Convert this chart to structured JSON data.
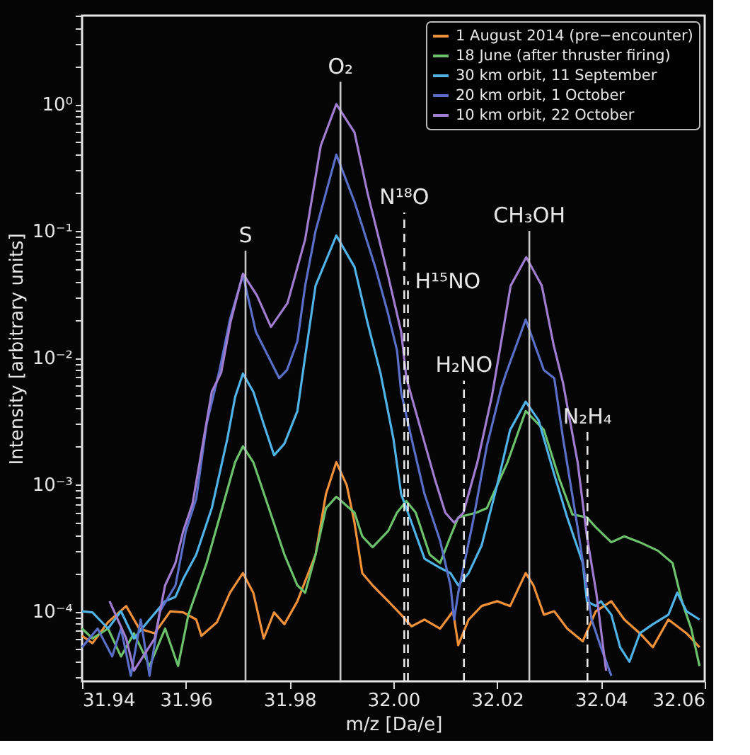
{
  "chart_data": {
    "type": "line",
    "xlabel": "m/z [Da/e]",
    "ylabel": "Intensity [arbitrary units]",
    "log": "y",
    "legend": "top right",
    "grid": false,
    "xlim": [
      31.94,
      32.06
    ],
    "xticks": [
      31.94,
      31.96,
      31.98,
      {
        "value": 32,
        "label": "32.00"
      },
      32.02,
      32.04,
      32.06
    ],
    "ylim": [
      2.8e-05,
      5
    ],
    "yticks": [
      {
        "value": 3e-05,
        "label": null
      },
      {
        "value": 4e-05,
        "label": null
      },
      {
        "value": 5e-05,
        "label": null
      },
      {
        "value": 6e-05,
        "label": null
      },
      {
        "value": 7e-05,
        "label": null
      },
      {
        "value": 8e-05,
        "label": null
      },
      {
        "value": 9e-05,
        "label": null
      },
      {
        "value": 0.0001,
        "label": "10⁻⁴"
      },
      {
        "value": 0.0002,
        "label": null
      },
      {
        "value": 0.0003,
        "label": null
      },
      {
        "value": 0.0004,
        "label": null
      },
      {
        "value": 0.0005,
        "label": null
      },
      {
        "value": 0.0006,
        "label": null
      },
      {
        "value": 0.0007,
        "label": null
      },
      {
        "value": 0.0008,
        "label": null
      },
      {
        "value": 0.0009,
        "label": null
      },
      {
        "value": 0.001,
        "label": "10⁻³"
      },
      {
        "value": 0.002,
        "label": null
      },
      {
        "value": 0.003,
        "label": null
      },
      {
        "value": 0.004,
        "label": null
      },
      {
        "value": 0.005,
        "label": null
      },
      {
        "value": 0.006,
        "label": null
      },
      {
        "value": 0.007,
        "label": null
      },
      {
        "value": 0.008,
        "label": null
      },
      {
        "value": 0.009,
        "label": null
      },
      {
        "value": 0.01,
        "label": "10⁻²"
      },
      {
        "value": 0.02,
        "label": null
      },
      {
        "value": 0.03,
        "label": null
      },
      {
        "value": 0.04,
        "label": null
      },
      {
        "value": 0.05,
        "label": null
      },
      {
        "value": 0.06,
        "label": null
      },
      {
        "value": 0.07,
        "label": null
      },
      {
        "value": 0.08,
        "label": null
      },
      {
        "value": 0.09,
        "label": null
      },
      {
        "value": 0.1,
        "label": "10⁻¹"
      },
      {
        "value": 0.2,
        "label": null
      },
      {
        "value": 0.3,
        "label": null
      },
      {
        "value": 0.4,
        "label": null
      },
      {
        "value": 0.5,
        "label": null
      },
      {
        "value": 0.6,
        "label": null
      },
      {
        "value": 0.7,
        "label": null
      },
      {
        "value": 0.8,
        "label": null
      },
      {
        "value": 0.9,
        "label": null
      },
      {
        "value": 1,
        "label": "10⁰"
      },
      {
        "value": 2,
        "label": null
      },
      {
        "value": 3,
        "label": null
      },
      {
        "value": 4,
        "label": null
      },
      {
        "value": 5,
        "label": null
      }
    ],
    "series": [
      {
        "name": "1 August 2014 (pre−encounter)",
        "color": "#f0913a",
        "x": [
          31.94,
          31.942,
          31.945,
          31.9485,
          31.951,
          31.954,
          31.957,
          31.9595,
          31.962,
          31.963,
          31.966,
          31.9685,
          31.971,
          31.973,
          31.975,
          31.977,
          31.979,
          31.9815,
          31.985,
          31.987,
          31.989,
          31.991,
          31.9925,
          31.994,
          31.996,
          31.999,
          32.0015,
          32.0035,
          32.006,
          32.009,
          32.0115,
          32.0125,
          32.0145,
          32.017,
          32.02,
          32.0225,
          32.0255,
          32.027,
          32.029,
          32.031,
          32.0335,
          32.0365,
          32.039,
          32.042,
          32.0445,
          32.0475,
          32.05,
          32.053,
          32.0565,
          32.059
        ],
        "values": [
          6.4e-05,
          5.6e-05,
          8.2e-05,
          0.00011,
          7.3e-05,
          6.7e-05,
          0.0001,
          9.8e-05,
          8.6e-05,
          6.4e-05,
          8.2e-05,
          0.00014,
          0.0002,
          0.00014,
          6.1e-05,
          9.8e-05,
          7.9e-05,
          0.00012,
          0.00028,
          0.00084,
          0.0015,
          0.00099,
          0.0005,
          0.0002,
          0.00016,
          0.00012,
          9.4e-05,
          7.6e-05,
          8.6e-05,
          7.3e-05,
          0.0001,
          5.4e-05,
          8.6e-05,
          0.00011,
          0.00012,
          0.00011,
          0.0002,
          0.00016,
          9.4e-05,
          0.0001,
          7.3e-05,
          5.8e-05,
          0.0001,
          0.00012,
          8.6e-05,
          6.7e-05,
          5.2e-05,
          8.6e-05,
          6.7e-05,
          5.2e-05
        ]
      },
      {
        "name": "18 June (after thruster firing)",
        "color": "#6cc26b",
        "x": [
          31.94,
          31.942,
          31.945,
          31.9475,
          31.95,
          31.953,
          31.956,
          31.9585,
          31.9605,
          31.964,
          31.967,
          31.9695,
          31.971,
          31.973,
          31.976,
          31.979,
          31.9815,
          31.983,
          31.985,
          31.987,
          31.989,
          31.9925,
          31.994,
          31.996,
          31.999,
          32.0007,
          32.0025,
          32.0043,
          32.007,
          32.009,
          32.011,
          32.0125,
          32.016,
          32.018,
          32.022,
          32.0255,
          32.029,
          32.032,
          32.0345,
          32.0373,
          32.039,
          32.042,
          32.0445,
          32.0475,
          32.051,
          32.0538,
          32.0556,
          32.0574,
          32.059
        ],
        "values": [
          7.3e-05,
          6.1e-05,
          7.3e-05,
          4.4e-05,
          6.7e-05,
          3.7e-05,
          7.3e-05,
          3.7e-05,
          9.4e-05,
          0.00024,
          0.00065,
          0.0015,
          0.002,
          0.0015,
          0.00065,
          0.00028,
          0.00016,
          0.00014,
          0.00028,
          0.00065,
          0.0008,
          0.0006,
          0.00039,
          0.00032,
          0.00043,
          0.0006,
          0.00074,
          0.0006,
          0.00028,
          0.00024,
          0.00039,
          0.00055,
          0.0006,
          0.00065,
          0.0015,
          0.0038,
          0.0027,
          0.0011,
          0.00058,
          0.00055,
          0.00046,
          0.00035,
          0.00039,
          0.00035,
          0.0003,
          0.00024,
          0.00012,
          7.3e-05,
          3.7e-05
        ]
      },
      {
        "name": "30 km orbit, 11 September",
        "color": "#4fb3e8",
        "x": [
          31.94,
          31.942,
          31.945,
          31.9475,
          31.95,
          31.953,
          31.956,
          31.958,
          31.9595,
          31.962,
          31.965,
          31.968,
          31.9695,
          31.971,
          31.973,
          31.975,
          31.977,
          31.979,
          31.9815,
          31.9828,
          31.985,
          31.989,
          31.9925,
          31.995,
          31.9975,
          32.0,
          32.0015,
          32.0035,
          32.006,
          32.009,
          32.011,
          32.0125,
          32.0145,
          32.017,
          32.02,
          32.0225,
          32.0255,
          32.028,
          32.031,
          32.0335,
          32.0365,
          32.0373,
          32.039,
          32.04,
          32.042,
          32.0437,
          32.0455,
          32.0475,
          32.05,
          32.053,
          32.0547,
          32.0565,
          32.059
        ],
        "values": [
          0.0001,
          9.8e-05,
          7.3e-05,
          0.0001,
          6.1e-05,
          8.6e-05,
          0.00012,
          0.00013,
          0.00018,
          0.00028,
          0.00065,
          0.0023,
          0.0049,
          0.0075,
          0.0054,
          0.003,
          0.0017,
          0.0021,
          0.0038,
          0.009,
          0.037,
          0.092,
          0.052,
          0.019,
          0.0076,
          0.0023,
          0.00084,
          0.0005,
          0.00026,
          0.00022,
          0.0002,
          0.00016,
          0.0002,
          0.00033,
          0.00099,
          0.0027,
          0.0045,
          0.0032,
          0.0012,
          0.00055,
          0.00024,
          0.00012,
          0.00011,
          0.00012,
          9.4e-05,
          5.2e-05,
          4e-05,
          6.7e-05,
          7.9e-05,
          9.4e-05,
          0.00014,
          0.0001,
          8.6e-05
        ]
      },
      {
        "name": "20 km orbit, 1 October",
        "color": "#5a6fc8",
        "x": [
          31.94,
          31.943,
          31.9458,
          31.9475,
          31.9494,
          31.9513,
          31.953,
          31.955,
          31.958,
          31.96,
          31.962,
          31.964,
          31.9665,
          31.9685,
          31.971,
          31.9735,
          31.978,
          31.9795,
          31.9815,
          31.983,
          31.985,
          31.989,
          31.9925,
          31.9965,
          31.999,
          32.0007,
          32.0015,
          32.0035,
          32.006,
          32.009,
          32.011,
          32.0117,
          32.0125,
          32.0153,
          32.018,
          32.0208,
          32.0217,
          32.0255,
          32.029,
          32.031,
          32.0327,
          32.0355,
          32.0382,
          32.04,
          32.042
        ],
        "values": [
          5.2e-05,
          7.3e-05,
          4.4e-05,
          7.3e-05,
          3.1e-05,
          8.6e-05,
          3.1e-05,
          0.0001,
          0.00016,
          0.00043,
          0.00077,
          0.003,
          0.008,
          0.02,
          0.045,
          0.016,
          0.0069,
          0.008,
          0.0135,
          0.037,
          0.1,
          0.4,
          0.17,
          0.052,
          0.022,
          0.0114,
          0.0053,
          0.0023,
          0.00084,
          0.00036,
          0.00016,
          8.6e-05,
          0.00014,
          0.0005,
          0.002,
          0.0058,
          0.0075,
          0.02,
          0.008,
          0.0069,
          0.0023,
          0.00046,
          8.6e-05,
          5.2e-05,
          3.1e-05
        ]
      },
      {
        "name": "10 km orbit, 22 October",
        "color": "#a07dd0",
        "x": [
          31.9453,
          31.9485,
          31.95,
          31.954,
          31.956,
          31.958,
          31.9595,
          31.9613,
          31.963,
          31.965,
          31.9668,
          31.9686,
          31.971,
          31.9737,
          31.9764,
          31.9796,
          31.983,
          31.986,
          31.989,
          31.9925,
          31.995,
          31.999,
          32.0015,
          32.0025,
          32.0053,
          32.008,
          32.01,
          32.0117,
          32.0135,
          32.0162,
          32.019,
          32.0208,
          32.0226,
          32.0256,
          32.0286,
          32.0309,
          32.0327,
          32.0355,
          32.0373,
          32.0391,
          32.041
        ],
        "values": [
          0.00012,
          6.1e-05,
          3.4e-05,
          6.1e-05,
          0.00016,
          0.00024,
          0.00043,
          0.00071,
          0.0018,
          0.0054,
          0.0076,
          0.019,
          0.046,
          0.031,
          0.0175,
          0.027,
          0.086,
          0.47,
          1.0,
          0.6,
          0.2,
          0.044,
          0.016,
          0.0069,
          0.0027,
          0.0011,
          0.0006,
          0.0005,
          0.0006,
          0.0015,
          0.005,
          0.0135,
          0.037,
          0.062,
          0.037,
          0.0125,
          0.0063,
          0.0015,
          0.00039,
          0.00014,
          3.4e-05
        ]
      }
    ],
    "ref_lines": [
      {
        "axis": "x",
        "value": 31.9715,
        "color": "#c8c8c8",
        "line_style": "solid"
      },
      {
        "axis": "x",
        "value": 31.9898,
        "color": "#c8c8c8",
        "line_style": "solid"
      },
      {
        "axis": "x",
        "value": 32.0021,
        "color": "#e8e8e8",
        "line_style": "dashed"
      },
      {
        "axis": "x",
        "value": 32.0028,
        "color": "#e8e8e8",
        "line_style": "dashed"
      },
      {
        "axis": "x",
        "value": 32.0136,
        "color": "#e8e8e8",
        "line_style": "dashed"
      },
      {
        "axis": "x",
        "value": 32.0262,
        "color": "#c8c8c8",
        "line_style": "solid"
      },
      {
        "axis": "x",
        "value": 32.0374,
        "color": "#e8e8e8",
        "line_style": "dashed"
      }
    ],
    "annotations": [
      {
        "text": "S",
        "x": 31.9715,
        "y": 0.07
      },
      {
        "text": "O₂",
        "x": 31.9898,
        "y": 1.5
      },
      {
        "text": "N¹⁸O",
        "x": 32.0021,
        "y": 0.14
      },
      {
        "text": "H¹⁵NO",
        "x": 32.0028,
        "y": 0.04
      },
      {
        "text": "H₂NO",
        "x": 32.0136,
        "y": 0.0066
      },
      {
        "text": "CH₃OH",
        "x": 32.0262,
        "y": 0.1
      },
      {
        "text": "N₂H₄",
        "x": 32.0374,
        "y": 0.0026
      }
    ]
  }
}
